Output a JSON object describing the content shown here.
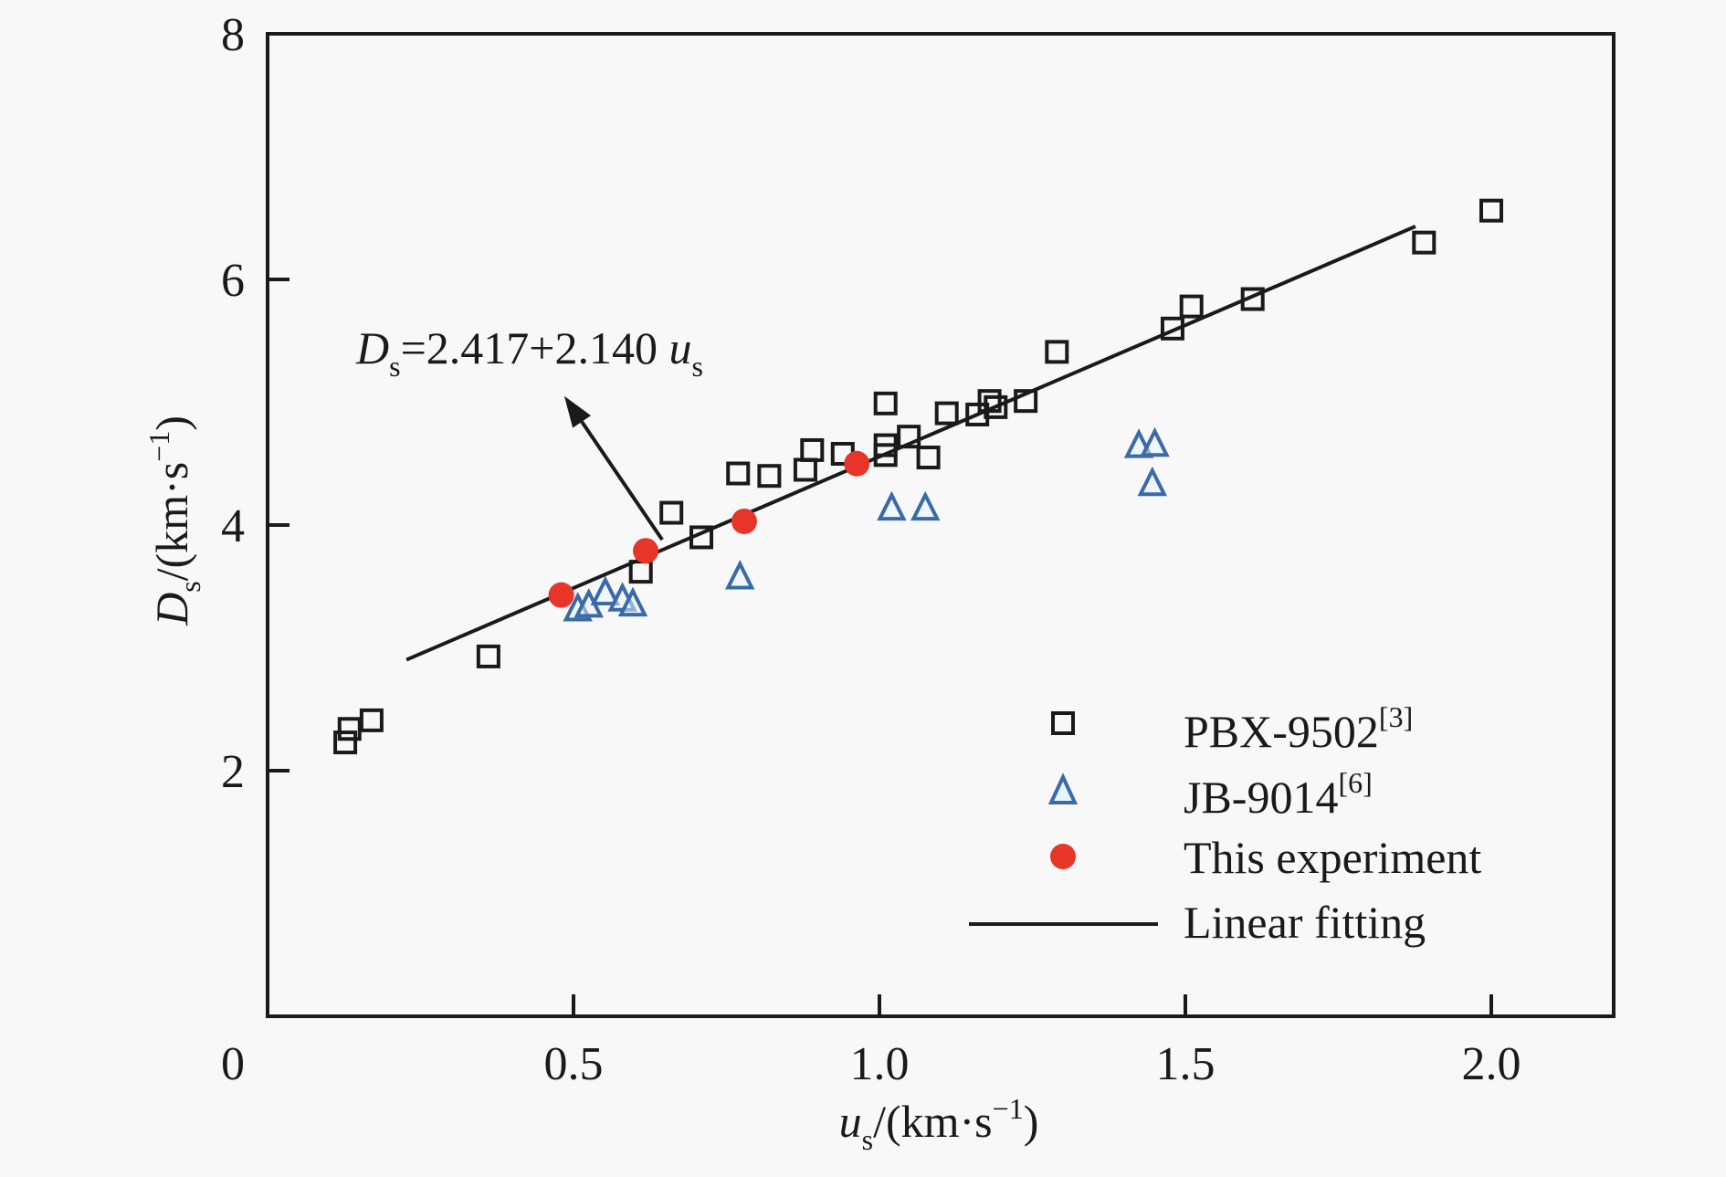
{
  "chart_data": {
    "type": "scatter",
    "title": "",
    "xlabel": {
      "main": "u",
      "sub": "s",
      "unit_pre": "/(km·s",
      "unit_sup": "−1",
      "unit_post": ")"
    },
    "ylabel": {
      "main": "D",
      "sub": "s",
      "unit_pre": "/(km·s",
      "unit_sup": "−1",
      "unit_post": ")"
    },
    "xlim": [
      0,
      2.2
    ],
    "ylim": [
      0,
      8
    ],
    "xticks": [
      0,
      0.5,
      1.0,
      1.5,
      2.0
    ],
    "xtick_labels": [
      "0",
      "0.5",
      "1.0",
      "1.5",
      "2.0"
    ],
    "yticks": [
      2,
      4,
      6,
      8
    ],
    "ytick_labels": [
      "2",
      "4",
      "6",
      "8"
    ],
    "grid": false,
    "legend_position": "bottom-right",
    "series": [
      {
        "name": "PBX-9502",
        "ref": "[3]",
        "marker": "square",
        "color": "#1a1a1a",
        "points": [
          [
            0.127,
            2.23
          ],
          [
            0.134,
            2.34
          ],
          [
            0.17,
            2.41
          ],
          [
            0.361,
            2.93
          ],
          [
            0.61,
            3.62
          ],
          [
            0.66,
            4.1
          ],
          [
            0.709,
            3.9
          ],
          [
            0.769,
            4.42
          ],
          [
            0.82,
            4.4
          ],
          [
            0.879,
            4.45
          ],
          [
            0.89,
            4.61
          ],
          [
            0.94,
            4.58
          ],
          [
            1.01,
            4.65
          ],
          [
            1.01,
            4.57
          ],
          [
            1.01,
            4.99
          ],
          [
            1.048,
            4.72
          ],
          [
            1.08,
            4.55
          ],
          [
            1.11,
            4.91
          ],
          [
            1.16,
            4.9
          ],
          [
            1.18,
            5.01
          ],
          [
            1.19,
            4.96
          ],
          [
            1.239,
            5.01
          ],
          [
            1.29,
            5.41
          ],
          [
            1.479,
            5.6
          ],
          [
            1.51,
            5.78
          ],
          [
            1.61,
            5.84
          ],
          [
            1.89,
            6.3
          ],
          [
            2.0,
            6.56
          ]
        ]
      },
      {
        "name": "JB-9014",
        "ref": "[6]",
        "marker": "triangle",
        "color": "#3a6aa8",
        "points": [
          [
            0.507,
            3.32
          ],
          [
            0.525,
            3.35
          ],
          [
            0.552,
            3.45
          ],
          [
            0.58,
            3.4
          ],
          [
            0.597,
            3.36
          ],
          [
            0.772,
            3.58
          ],
          [
            1.02,
            4.14
          ],
          [
            1.075,
            4.14
          ],
          [
            1.424,
            4.65
          ],
          [
            1.45,
            4.66
          ],
          [
            1.446,
            4.34
          ]
        ]
      },
      {
        "name": "This experiment",
        "ref": "",
        "marker": "circle",
        "color": "#e8352a",
        "points": [
          [
            0.48,
            3.43
          ],
          [
            0.618,
            3.79
          ],
          [
            0.779,
            4.03
          ],
          [
            0.963,
            4.5
          ]
        ]
      },
      {
        "name": "Linear fitting",
        "ref": "",
        "marker": "line",
        "color": "#1a1a1a",
        "intercept": 2.417,
        "slope": 2.14,
        "x_range": [
          0.227,
          1.876
        ]
      }
    ],
    "annotation": {
      "lhs": "D",
      "lhs_sub": "s",
      "rhs": "=2.417+2.140 ",
      "var": "u",
      "var_sub": "s",
      "arrow_from": [
        0.645,
        3.88
      ],
      "arrow_to": [
        0.485,
        5.05
      ]
    }
  }
}
